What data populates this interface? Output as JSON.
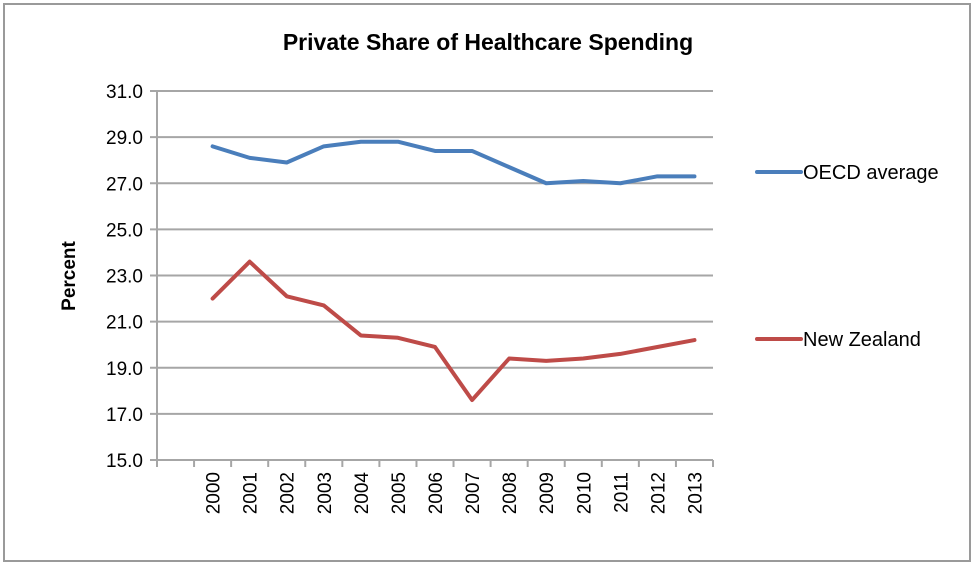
{
  "chart_data": {
    "type": "line",
    "title": "Private Share of Healthcare Spending",
    "xlabel": "",
    "ylabel": "Percent",
    "ylim": [
      15.0,
      31.0
    ],
    "y_ticks": [
      "15.0",
      "17.0",
      "19.0",
      "21.0",
      "23.0",
      "25.0",
      "27.0",
      "29.0",
      "31.0"
    ],
    "y_tick_values": [
      15,
      17,
      19,
      21,
      23,
      25,
      27,
      29,
      31
    ],
    "categories": [
      "",
      "2000",
      "2001",
      "2002",
      "2003",
      "2004",
      "2005",
      "2006",
      "2007",
      "2008",
      "2009",
      "2010",
      "2011",
      "2012",
      "2013"
    ],
    "grid": true,
    "legend_position": "right",
    "series": [
      {
        "name": "OECD average",
        "color": "#4a7ebb",
        "values": [
          null,
          28.6,
          28.1,
          27.9,
          28.6,
          28.8,
          28.8,
          28.4,
          28.4,
          27.7,
          27.0,
          27.1,
          27.0,
          27.3,
          27.3
        ]
      },
      {
        "name": "New Zealand",
        "color": "#be4b48",
        "values": [
          null,
          22.0,
          23.6,
          22.1,
          21.7,
          20.4,
          20.3,
          19.9,
          17.6,
          19.4,
          19.3,
          19.4,
          19.6,
          19.9,
          20.2
        ]
      }
    ]
  },
  "colors": {
    "gridline": "#a6a6a6",
    "axis": "#a6a6a6",
    "frame": "#9a9a9a"
  }
}
